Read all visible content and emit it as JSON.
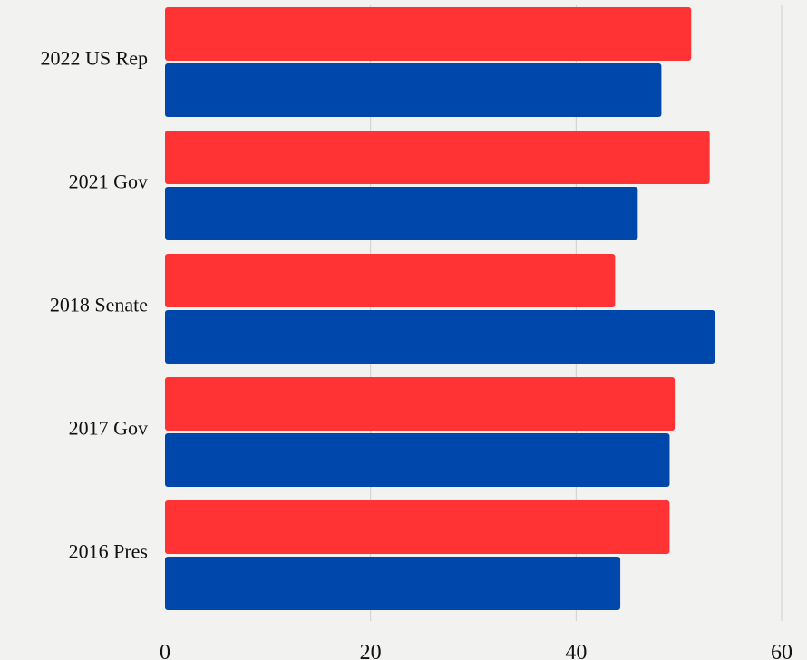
{
  "chart_data": {
    "type": "bar",
    "orientation": "horizontal",
    "categories": [
      "2022 US Rep",
      "2021 Gov",
      "2018 Senate",
      "2017 Gov",
      "2016 Pres"
    ],
    "series": [
      {
        "color": "#ff3333",
        "values": [
          51.2,
          53.0,
          43.8,
          49.6,
          49.1
        ]
      },
      {
        "color": "#0047ab",
        "values": [
          48.3,
          46.0,
          53.5,
          49.1,
          44.3
        ]
      }
    ],
    "xlim": [
      0,
      60
    ],
    "xticks": [
      "0",
      "20",
      "40",
      "60"
    ],
    "grid": true
  }
}
